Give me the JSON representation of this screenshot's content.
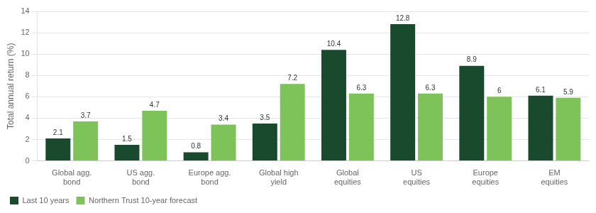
{
  "chart_data": {
    "type": "bar",
    "categories": [
      "Global agg.\nbond",
      "US agg.\nbond",
      "Europe agg.\nbond",
      "Global high\nyield",
      "Global\nequities",
      "US\nequities",
      "Europe\nequities",
      "EM\nequities"
    ],
    "series": [
      {
        "name": "Last 10 years",
        "color": "#1a4a2e",
        "values": [
          2.1,
          1.5,
          0.8,
          3.5,
          10.4,
          12.8,
          8.9,
          6.1
        ]
      },
      {
        "name": "Northern Trust 10-year forecast",
        "color": "#7dc35a",
        "values": [
          3.7,
          4.7,
          3.4,
          7.2,
          6.3,
          6.3,
          6.0,
          5.9
        ]
      }
    ],
    "ylabel": "Total annual return (%)",
    "ylim": [
      0,
      14
    ],
    "yticks": [
      0,
      2,
      4,
      6,
      8,
      10,
      12,
      14
    ],
    "grid": true,
    "legend": "bottom",
    "data_labels": true
  }
}
